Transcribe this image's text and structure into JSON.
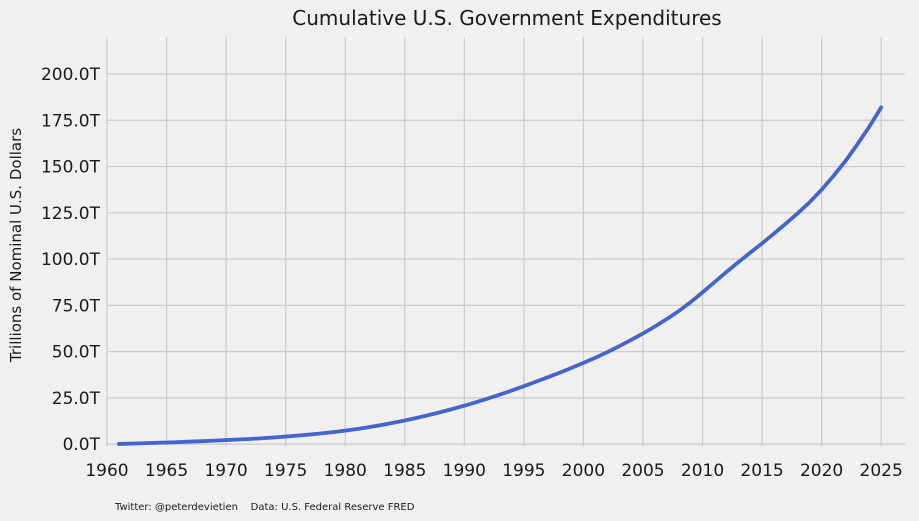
{
  "chart_data": {
    "type": "line",
    "title": "Cumulative U.S. Government Expenditures",
    "ylabel": "Trillions of Nominal U.S. Dollars",
    "xlabel": "",
    "xlim": [
      1960,
      2027
    ],
    "ylim": [
      -1,
      220
    ],
    "x_ticks": [
      1960,
      1965,
      1970,
      1975,
      1980,
      1985,
      1990,
      1995,
      2000,
      2005,
      2010,
      2015,
      2020,
      2025
    ],
    "y_ticks": [
      0,
      25,
      50,
      75,
      100,
      125,
      150,
      175,
      200
    ],
    "y_tick_labels": [
      "0.0T",
      "25.0T",
      "50.0T",
      "75.0T",
      "100.0T",
      "125.0T",
      "150.0T",
      "175.0T",
      "200.0T"
    ],
    "grid": true,
    "series": [
      {
        "color": "#4466cc",
        "x": [
          1961,
          1962,
          1963,
          1964,
          1965,
          1966,
          1967,
          1968,
          1969,
          1970,
          1971,
          1972,
          1973,
          1974,
          1975,
          1976,
          1977,
          1978,
          1979,
          1980,
          1981,
          1982,
          1983,
          1984,
          1985,
          1986,
          1987,
          1988,
          1989,
          1990,
          1991,
          1992,
          1993,
          1994,
          1995,
          1996,
          1997,
          1998,
          1999,
          2000,
          2001,
          2002,
          2003,
          2004,
          2005,
          2006,
          2007,
          2008,
          2009,
          2010,
          2011,
          2012,
          2013,
          2014,
          2015,
          2016,
          2017,
          2018,
          2019,
          2020,
          2021,
          2022,
          2023,
          2024,
          2025
        ],
        "y": [
          0.1,
          0.3,
          0.5,
          0.7,
          0.9,
          1.1,
          1.4,
          1.6,
          1.9,
          2.2,
          2.5,
          2.8,
          3.2,
          3.6,
          4.1,
          4.6,
          5.2,
          5.8,
          6.5,
          7.3,
          8.2,
          9.2,
          10.3,
          11.5,
          12.8,
          14.2,
          15.7,
          17.3,
          19.0,
          20.8,
          22.7,
          24.7,
          26.8,
          29.0,
          31.3,
          33.7,
          36.1,
          38.6,
          41.2,
          43.9,
          46.7,
          49.7,
          52.9,
          56.3,
          59.8,
          63.6,
          67.6,
          71.9,
          76.7,
          82.0,
          87.5,
          93.0,
          98.3,
          103.4,
          108.5,
          113.8,
          119.2,
          124.8,
          130.8,
          137.5,
          145.0,
          153.0,
          162.0,
          171.5,
          182.0
        ]
      }
    ]
  },
  "footer": {
    "text": "Twitter: @peterdevietien    Data: U.S. Federal Reserve FRED"
  }
}
